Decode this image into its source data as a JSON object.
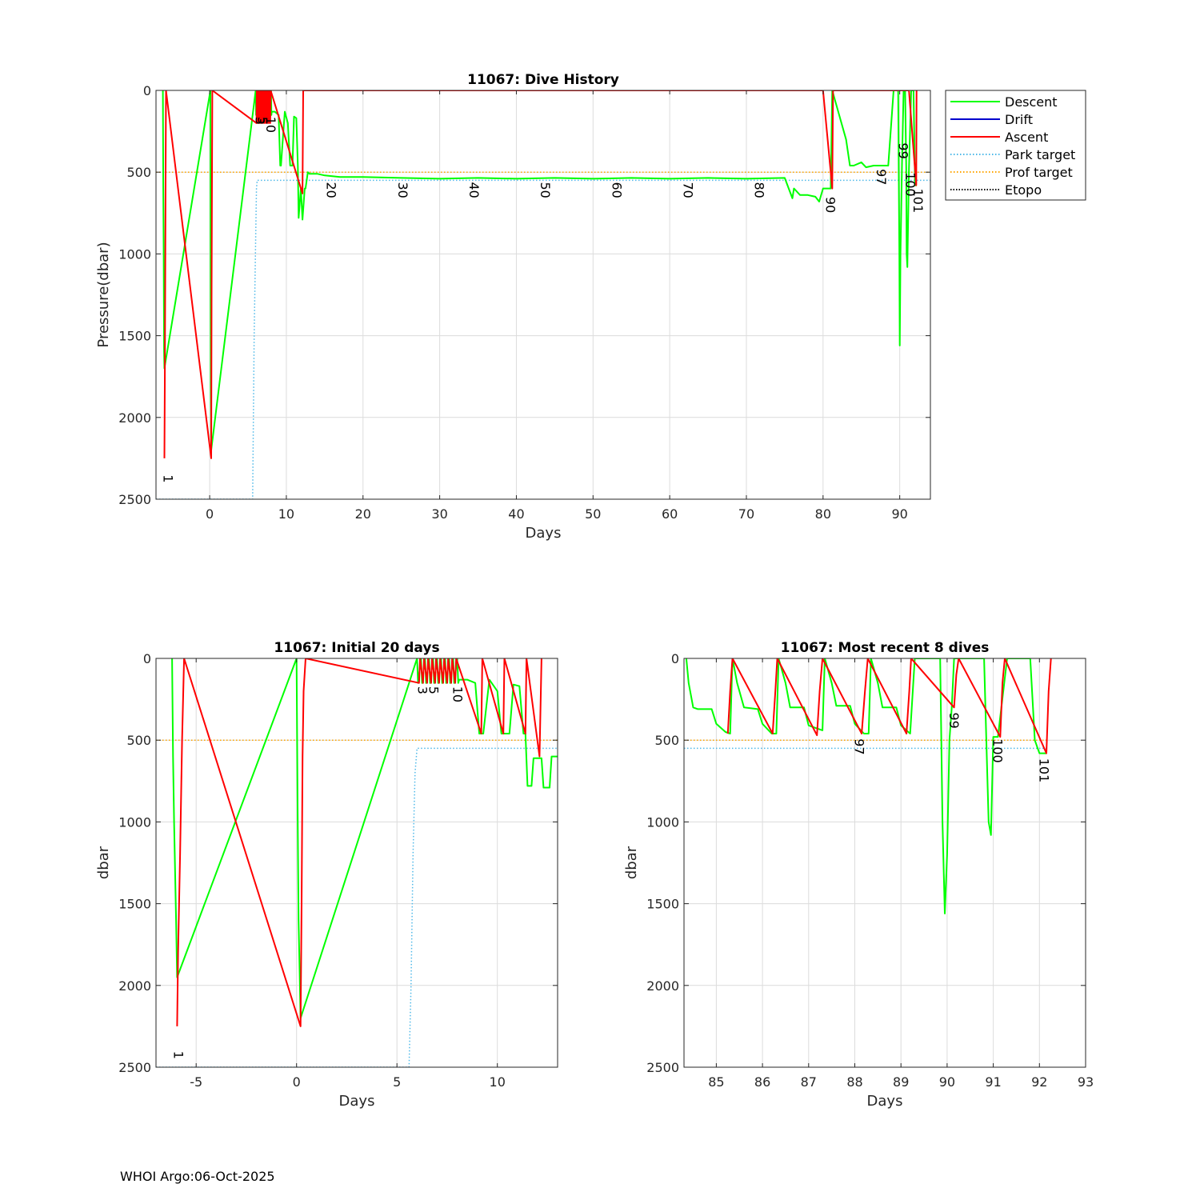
{
  "footer": "WHOI Argo:06-Oct-2025",
  "colors": {
    "descent": "#00ff00",
    "drift": "#0000cd",
    "ascent": "#ff0000",
    "park_target": "#4db8e8",
    "prof_target": "#ffa500",
    "etopo": "#000000",
    "grid": "#dcdcdc"
  },
  "chart_data": [
    {
      "type": "line",
      "title": "11067: Dive History",
      "xlabel": "Days",
      "ylabel": "Pressure(dbar)",
      "xlim": [
        -7,
        94
      ],
      "ylim": [
        0,
        2500
      ],
      "y_reversed": true,
      "grid": true,
      "xticks": [
        0,
        10,
        20,
        30,
        40,
        50,
        60,
        70,
        80,
        90
      ],
      "yticks": [
        0,
        500,
        1000,
        1500,
        2000,
        2500
      ],
      "legend": {
        "position": "outside-top-right",
        "entries": [
          "Descent",
          "Drift",
          "Ascent",
          "Park target",
          "Prof target",
          "Etopo"
        ]
      },
      "park_target": {
        "x": [
          -7,
          5.6,
          5.6,
          5.8,
          6.0,
          6.1,
          6.2,
          94
        ],
        "y": [
          2500,
          2500,
          2500,
          1500,
          900,
          600,
          550,
          550
        ]
      },
      "prof_target": {
        "x": [
          -7,
          94
        ],
        "y": [
          500,
          500
        ]
      },
      "series": [
        {
          "name": "Descent",
          "x": [
            -6.1,
            -6.05,
            -6.0,
            -5.95,
            -5.9,
            0.1,
            0.12,
            0.15,
            0.18,
            0.2,
            6.0,
            6.05,
            6.2,
            6.25,
            6.4,
            6.45,
            6.6,
            6.65,
            6.8,
            6.85,
            7.0,
            7.05,
            7.2,
            7.25,
            7.4,
            7.45,
            7.6,
            7.65,
            7.8,
            7.85,
            8.0,
            8.05,
            8.1,
            8.5,
            9.0,
            9.2,
            9.3,
            9.8,
            10.2,
            10.5,
            10.8,
            11.0,
            11.3,
            11.5,
            11.6,
            11.9,
            12.1,
            12.4,
            12.5,
            12.8,
            13.0,
            14.0,
            15.0,
            17.0,
            20.0,
            25.0,
            30.0,
            35.0,
            40.0,
            45.0,
            50.0,
            55.0,
            60.0,
            65.0,
            70.0,
            75.0,
            76.0,
            76.2,
            77.0,
            78.0,
            79.0,
            79.5,
            80.0,
            81.0,
            81.2,
            83.0,
            83.5,
            84.0,
            85.0,
            85.6,
            86.6,
            87.5,
            88.5,
            89.2,
            89.5,
            89.8,
            89.95,
            90.0,
            90.1,
            90.3,
            90.5,
            90.7,
            90.85,
            90.9,
            91.0,
            91.2,
            91.5,
            91.8,
            92.0,
            92.2
          ],
          "y": [
            0,
            600,
            1000,
            1600,
            1700,
            0,
            900,
            1800,
            2000,
            2200,
            0,
            150,
            0,
            150,
            0,
            150,
            0,
            150,
            0,
            150,
            0,
            150,
            0,
            150,
            0,
            150,
            0,
            150,
            0,
            150,
            0,
            150,
            130,
            130,
            150,
            460,
            460,
            130,
            200,
            460,
            460,
            160,
            170,
            460,
            780,
            600,
            790,
            600,
            600,
            500,
            510,
            510,
            520,
            530,
            530,
            535,
            540,
            535,
            540,
            535,
            540,
            535,
            540,
            535,
            540,
            535,
            660,
            600,
            640,
            640,
            650,
            680,
            600,
            600,
            0,
            300,
            460,
            460,
            440,
            470,
            460,
            460,
            460,
            0,
            0,
            0,
            1000,
            1560,
            1000,
            450,
            0,
            0,
            480,
            1000,
            1080,
            480,
            0,
            0,
            580,
            580
          ]
        },
        {
          "name": "Drift",
          "x": [],
          "y": []
        },
        {
          "name": "Ascent",
          "x": [
            -5.9,
            -5.85,
            -5.8,
            -5.75,
            -5.7,
            0.2,
            0.25,
            0.3,
            0.35,
            6.1,
            6.15,
            6.3,
            6.35,
            6.5,
            6.55,
            6.7,
            6.75,
            6.9,
            6.95,
            7.1,
            7.15,
            7.3,
            7.35,
            7.5,
            7.55,
            7.7,
            7.75,
            7.9,
            7.95,
            12.1,
            12.2,
            20,
            30,
            40,
            50,
            60,
            70,
            80,
            81.2,
            81.3,
            85.3,
            86.3,
            87.2,
            88.2,
            89.15,
            90.2,
            91.2,
            92.15,
            92.2
          ],
          "y": [
            2250,
            1800,
            1200,
            500,
            0,
            2250,
            1200,
            500,
            0,
            200,
            0,
            200,
            0,
            200,
            0,
            200,
            0,
            200,
            0,
            200,
            0,
            200,
            0,
            200,
            0,
            200,
            0,
            200,
            0,
            630,
            0,
            0,
            0,
            0,
            0,
            0,
            0,
            0,
            600,
            0,
            0,
            0,
            0,
            0,
            0,
            0,
            0,
            580,
            0
          ]
        },
        {
          "name": "Park target",
          "x": [],
          "y": []
        },
        {
          "name": "Prof target",
          "x": [],
          "y": []
        },
        {
          "name": "Etopo",
          "x": [],
          "y": []
        }
      ],
      "annotations": [
        {
          "text": "1",
          "x": -6.0,
          "y": 2350
        },
        {
          "text": "3",
          "x": 6.0,
          "y": 160
        },
        {
          "text": "5",
          "x": 6.3,
          "y": 160
        },
        {
          "text": "10",
          "x": 7.4,
          "y": 160
        },
        {
          "text": "20",
          "x": 15.3,
          "y": 560
        },
        {
          "text": "30",
          "x": 24.6,
          "y": 560
        },
        {
          "text": "40",
          "x": 33.9,
          "y": 560
        },
        {
          "text": "50",
          "x": 43.2,
          "y": 560
        },
        {
          "text": "60",
          "x": 52.5,
          "y": 560
        },
        {
          "text": "70",
          "x": 61.8,
          "y": 560
        },
        {
          "text": "80",
          "x": 71.1,
          "y": 560
        },
        {
          "text": "90",
          "x": 80.4,
          "y": 650
        },
        {
          "text": "97",
          "x": 87.0,
          "y": 480
        },
        {
          "text": "99",
          "x": 89.9,
          "y": 320
        },
        {
          "text": "100",
          "x": 90.8,
          "y": 500
        },
        {
          "text": "101",
          "x": 91.8,
          "y": 600
        }
      ]
    },
    {
      "type": "line",
      "title": "11067: Initial 20 days",
      "xlabel": "Days",
      "ylabel": "dbar",
      "xlim": [
        -7,
        13
      ],
      "ylim": [
        0,
        2500
      ],
      "y_reversed": true,
      "grid": true,
      "xticks": [
        -5,
        0,
        5,
        10
      ],
      "yticks": [
        0,
        500,
        1000,
        1500,
        2000,
        2500
      ],
      "park_target": {
        "x": [
          -7,
          5.6,
          5.6,
          5.7,
          5.8,
          5.9,
          6.0,
          13
        ],
        "y": [
          2500,
          2500,
          2500,
          2000,
          1200,
          700,
          550,
          550
        ]
      },
      "prof_target": {
        "x": [
          -7,
          13
        ],
        "y": [
          500,
          500
        ]
      },
      "series": [
        {
          "name": "Descent",
          "x": [
            -6.2,
            -6.15,
            -6.1,
            -6.0,
            -5.95,
            0.0,
            0.05,
            0.1,
            0.15,
            0.2,
            6.0,
            6.05,
            6.2,
            6.25,
            6.4,
            6.45,
            6.6,
            6.65,
            6.8,
            6.85,
            7.0,
            7.05,
            7.2,
            7.25,
            7.4,
            7.45,
            7.6,
            7.65,
            7.8,
            7.85,
            8.0,
            8.05,
            8.1,
            8.5,
            8.9,
            9.1,
            9.3,
            9.6,
            10.0,
            10.2,
            10.6,
            10.8,
            11.1,
            11.3,
            11.4,
            11.5,
            11.7,
            11.8,
            12.0,
            12.2,
            12.3,
            12.6,
            12.7,
            13.0
          ],
          "y": [
            0,
            600,
            1000,
            1600,
            1950,
            0,
            900,
            1600,
            1900,
            2200,
            0,
            150,
            0,
            150,
            0,
            150,
            0,
            150,
            0,
            150,
            0,
            150,
            0,
            150,
            0,
            150,
            0,
            150,
            0,
            150,
            0,
            150,
            130,
            130,
            150,
            460,
            460,
            130,
            200,
            460,
            460,
            160,
            170,
            460,
            460,
            780,
            780,
            610,
            610,
            610,
            790,
            790,
            600,
            600
          ]
        },
        {
          "name": "Drift",
          "x": [],
          "y": []
        },
        {
          "name": "Ascent",
          "x": [
            -5.95,
            -5.9,
            -5.8,
            -5.7,
            -5.6,
            0.2,
            0.25,
            0.3,
            0.35,
            0.45,
            6.1,
            6.15,
            6.3,
            6.35,
            6.5,
            6.55,
            6.7,
            6.75,
            6.9,
            6.95,
            7.1,
            7.15,
            7.3,
            7.35,
            7.5,
            7.55,
            7.7,
            7.75,
            7.9,
            7.95,
            9.2,
            9.25,
            10.3,
            10.35,
            11.4,
            11.45,
            12.1,
            12.2
          ],
          "y": [
            2250,
            1800,
            1200,
            500,
            0,
            2250,
            1500,
            600,
            200,
            0,
            150,
            0,
            150,
            0,
            150,
            0,
            150,
            0,
            150,
            0,
            150,
            0,
            150,
            0,
            150,
            0,
            150,
            0,
            150,
            0,
            460,
            0,
            460,
            0,
            460,
            0,
            600,
            0
          ]
        }
      ],
      "annotations": [
        {
          "text": "1",
          "x": -6.1,
          "y": 2400
        },
        {
          "text": "3",
          "x": 6.05,
          "y": 170
        },
        {
          "text": "5",
          "x": 6.6,
          "y": 170
        },
        {
          "text": "10",
          "x": 7.8,
          "y": 170
        }
      ]
    },
    {
      "type": "line",
      "title": "11067: Most recent 8 dives",
      "xlabel": "Days",
      "ylabel": "dbar",
      "xlim": [
        84.3,
        93
      ],
      "ylim": [
        0,
        2500
      ],
      "y_reversed": true,
      "grid": true,
      "xticks": [
        85,
        86,
        87,
        88,
        89,
        90,
        91,
        92,
        93
      ],
      "yticks": [
        0,
        500,
        1000,
        1500,
        2000,
        2500
      ],
      "park_target": {
        "x": [
          84.3,
          92.2
        ],
        "y": [
          550,
          550
        ]
      },
      "prof_target": {
        "x": [
          84.3,
          92.2
        ],
        "y": [
          500,
          500
        ]
      },
      "series": [
        {
          "name": "Descent",
          "x": [
            84.35,
            84.4,
            84.5,
            84.6,
            84.9,
            85.0,
            85.2,
            85.3,
            85.35,
            85.45,
            85.6,
            85.9,
            86.0,
            86.2,
            86.3,
            86.35,
            86.5,
            86.6,
            86.9,
            87.0,
            87.2,
            87.3,
            87.35,
            87.5,
            87.6,
            87.9,
            88.0,
            88.2,
            88.3,
            88.35,
            88.5,
            88.6,
            88.9,
            89.0,
            89.2,
            89.3,
            89.8,
            89.85,
            89.9,
            89.95,
            90.0,
            90.05,
            90.1,
            90.15,
            90.3,
            90.5,
            90.7,
            90.8,
            90.85,
            90.9,
            90.95,
            91.0,
            91.1,
            91.3,
            91.5,
            91.8,
            91.9,
            92.0,
            92.15
          ],
          "y": [
            0,
            150,
            300,
            310,
            310,
            400,
            450,
            460,
            0,
            150,
            300,
            310,
            400,
            460,
            460,
            0,
            150,
            300,
            300,
            410,
            430,
            440,
            0,
            150,
            290,
            290,
            400,
            460,
            460,
            0,
            150,
            300,
            300,
            410,
            460,
            0,
            0,
            0,
            1000,
            1560,
            1200,
            500,
            300,
            0,
            0,
            0,
            0,
            0,
            500,
            1000,
            1080,
            480,
            480,
            0,
            0,
            0,
            500,
            580,
            580
          ]
        },
        {
          "name": "Drift",
          "x": [],
          "y": []
        },
        {
          "name": "Ascent",
          "x": [
            85.25,
            85.3,
            85.35,
            86.22,
            86.28,
            86.32,
            87.18,
            87.24,
            87.3,
            88.15,
            88.22,
            88.28,
            89.12,
            89.18,
            89.22,
            90.15,
            90.2,
            90.25,
            91.15,
            91.2,
            91.25,
            92.15,
            92.2,
            92.25
          ],
          "y": [
            460,
            200,
            0,
            460,
            200,
            0,
            470,
            200,
            0,
            460,
            200,
            0,
            460,
            200,
            0,
            300,
            100,
            0,
            480,
            150,
            0,
            580,
            200,
            0
          ]
        }
      ],
      "annotations": [
        {
          "text": "97",
          "x": 88.0,
          "y": 490
        },
        {
          "text": "99",
          "x": 90.05,
          "y": 330
        },
        {
          "text": "100",
          "x": 91.0,
          "y": 490
        },
        {
          "text": "101",
          "x": 92.0,
          "y": 610
        }
      ]
    }
  ]
}
